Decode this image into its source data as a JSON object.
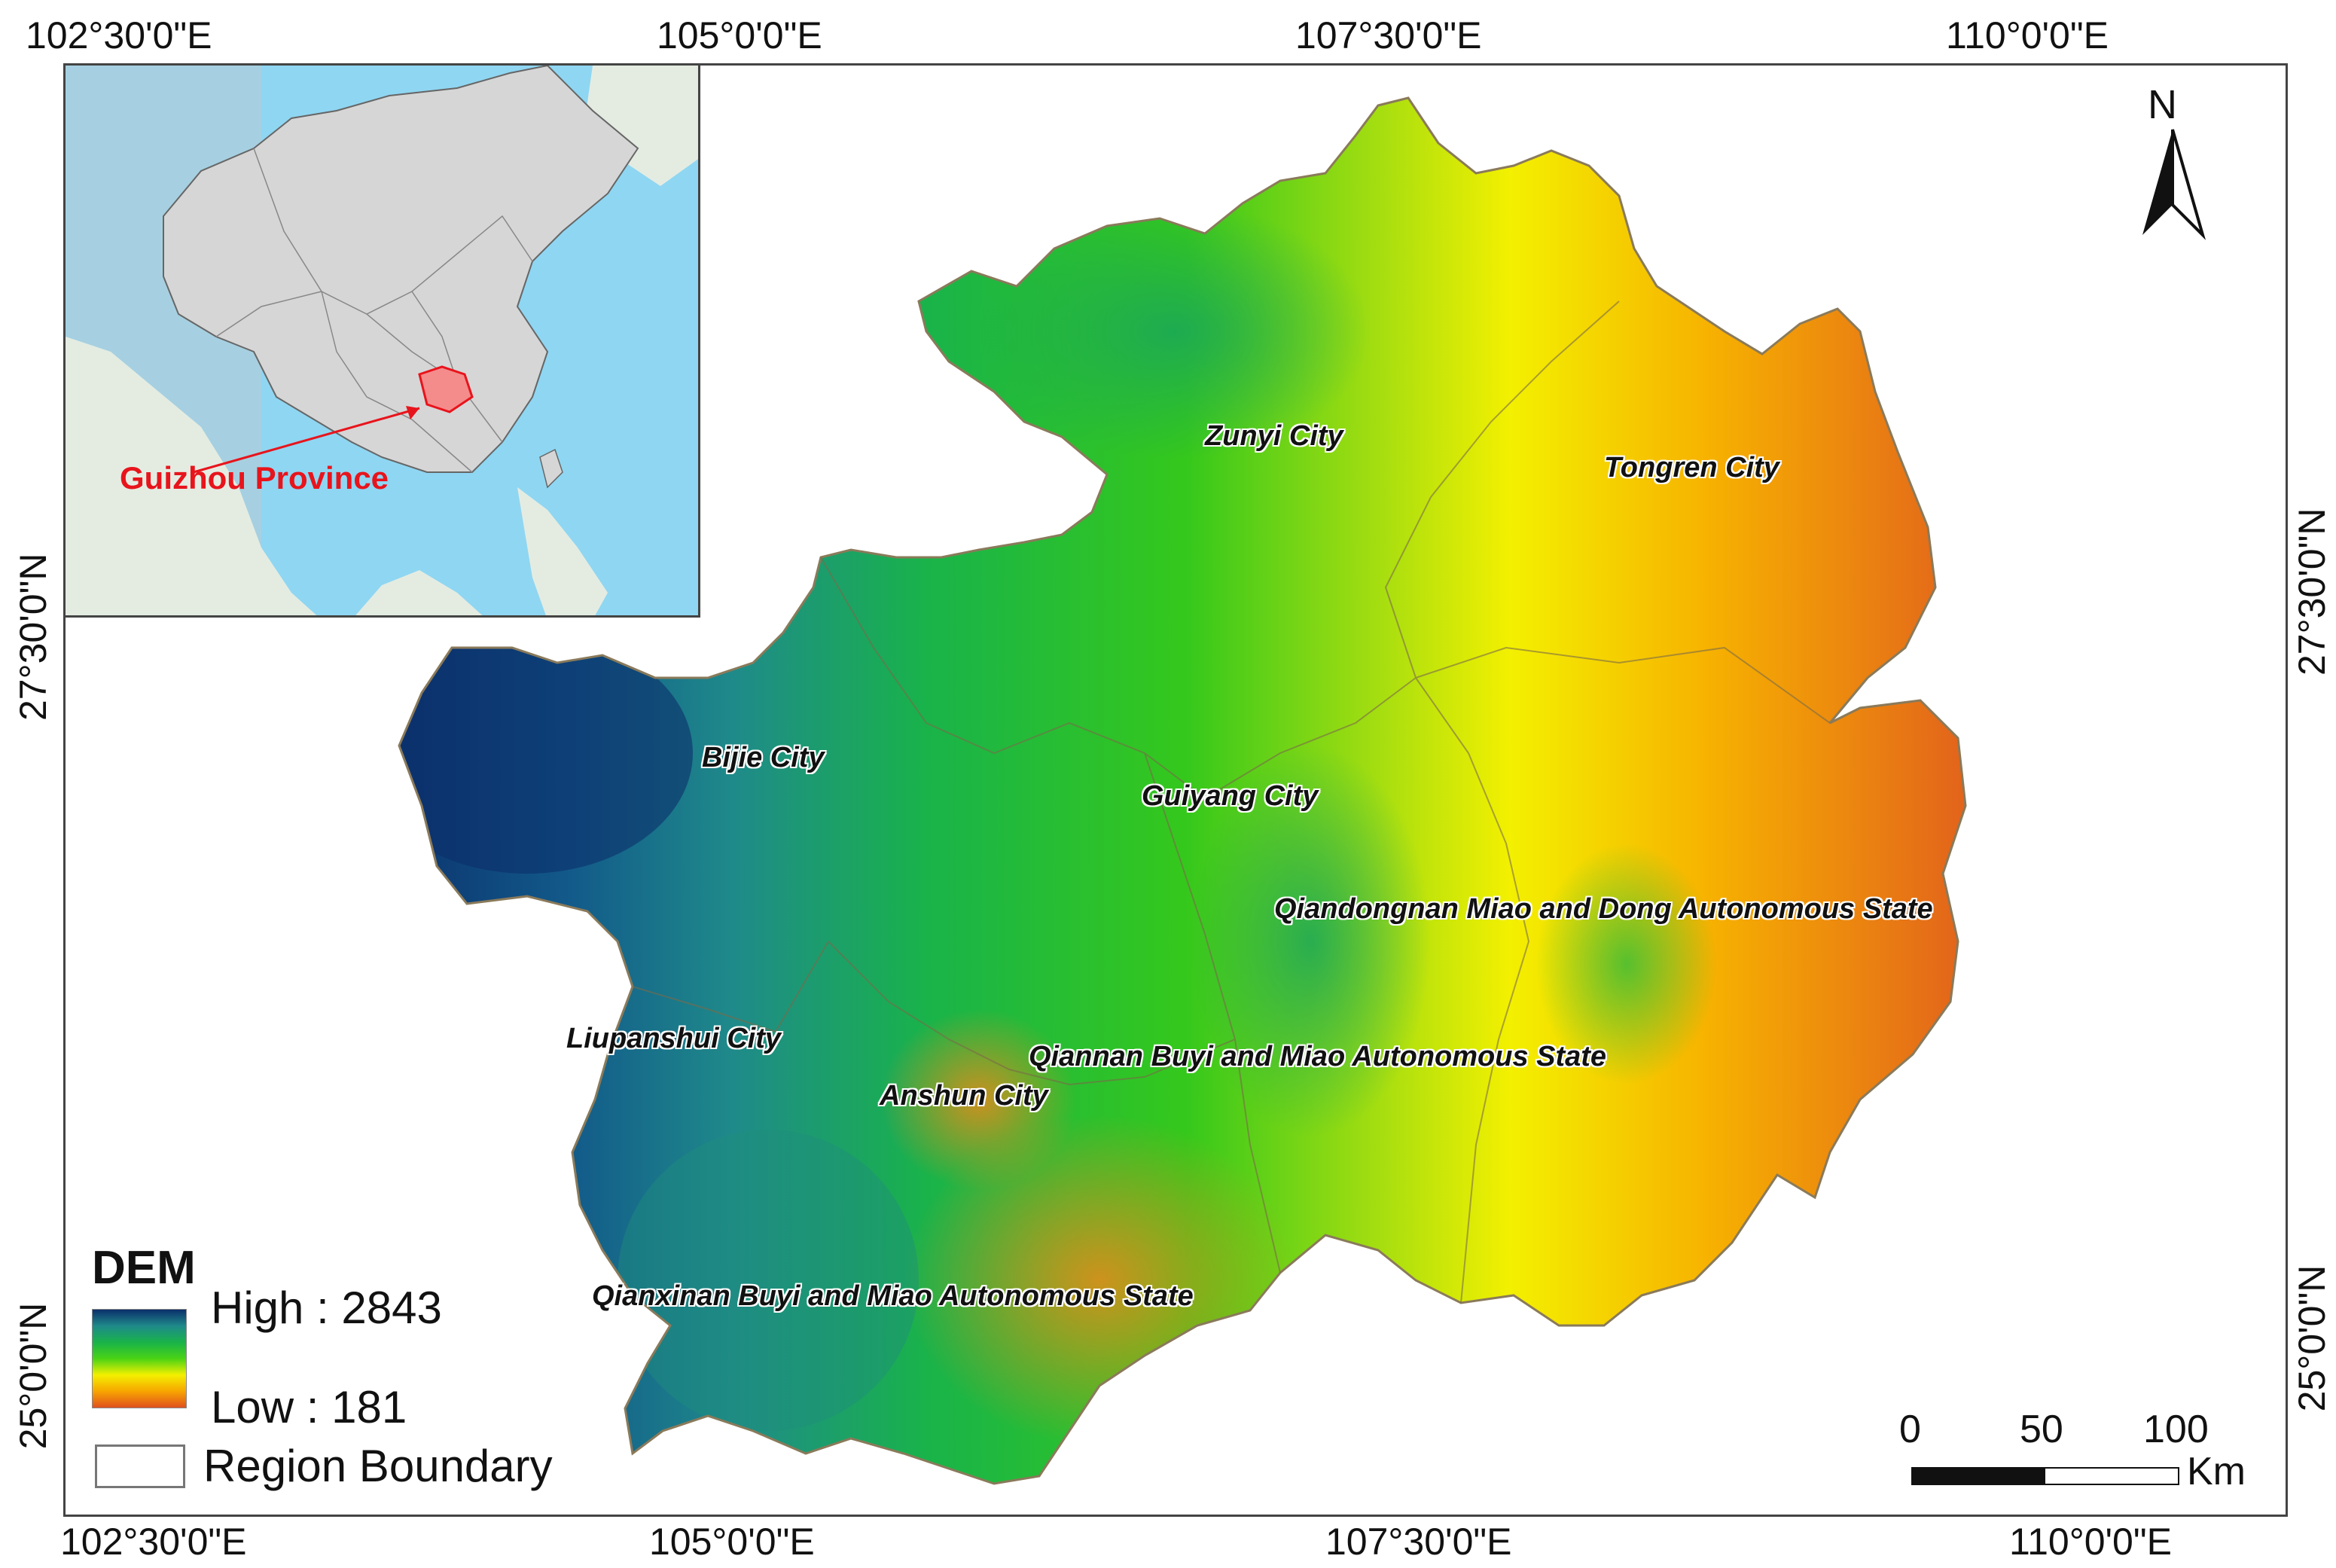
{
  "coords": {
    "top": [
      "102°30'0\"E",
      "105°0'0\"E",
      "107°30'0\"E",
      "110°0'0\"E"
    ],
    "bottom": [
      "102°30'0\"E",
      "105°0'0\"E",
      "107°30'0\"E",
      "110°0'0\"E"
    ],
    "left": [
      "27°30'0\"N",
      "25°0'0\"N"
    ],
    "right": [
      "27°30'0\"N",
      "25°0'0\"N"
    ]
  },
  "north_arrow": "N",
  "inset": {
    "label": "Guizhou Province",
    "highlight_color": "#f48c8c",
    "arrow_color": "#e8141c"
  },
  "cities": [
    "Zunyi City",
    "Tongren City",
    "Bijie City",
    "Guiyang City",
    "Qiandongnan Miao and Dong Autonomous State",
    "Liupanshui City",
    "Qiannan Buyi and Miao Autonomous State",
    "Anshun City",
    "Qianxinan Buyi and Miao Autonomous State"
  ],
  "legend": {
    "title": "DEM",
    "high": "High : 2843",
    "low": "Low : 181",
    "boundary": "Region Boundary",
    "ramp_colors": [
      "#0b2f6b",
      "#1f8a8a",
      "#19b34a",
      "#4ad315",
      "#f3f000",
      "#f7a500",
      "#e0501e"
    ]
  },
  "scale": {
    "ticks": [
      "0",
      "50",
      "100"
    ],
    "unit": "Km"
  }
}
